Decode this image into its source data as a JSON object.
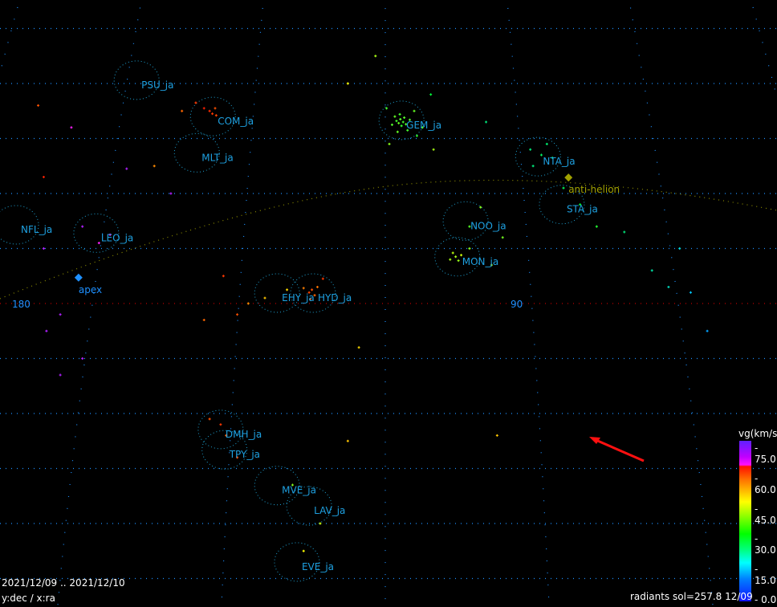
{
  "chart_data": {
    "type": "scatter",
    "xlabel": "x:ra",
    "ylabel": "y:dec",
    "axis_label_text": "y:dec / x:ra",
    "x_tick_labels": [
      "180",
      "90"
    ],
    "grid": true,
    "date_range": "2021/12/09 .. 2021/12/10",
    "status": "radiants sol=257.8 12/09",
    "colorbar": {
      "title": "vg(km/s)",
      "ticks": [
        "75.0",
        "60.0",
        "45.0",
        "30.0",
        "15.0",
        "0.0"
      ],
      "range": [
        0,
        75
      ]
    },
    "markers": [
      {
        "name": "apex",
        "ra": 168.7,
        "dec": 4.7,
        "color": "#1e90ff"
      },
      {
        "name": "anti-helion",
        "ra": 80.1,
        "dec": 22.9,
        "color": "#a0a000"
      }
    ],
    "showers": [
      {
        "name": "PSU_ja",
        "ra": 158.2,
        "dec": 40.6
      },
      {
        "name": "COM_ja",
        "ra": 144.4,
        "dec": 34.0
      },
      {
        "name": "MLT_ja",
        "ra": 147.3,
        "dec": 27.4
      },
      {
        "name": "GEM_ja",
        "ra": 110.3,
        "dec": 33.3
      },
      {
        "name": "NTA_ja",
        "ra": 85.6,
        "dec": 26.7
      },
      {
        "name": "STA_ja",
        "ra": 81.3,
        "dec": 18.0
      },
      {
        "name": "NOO_ja",
        "ra": 98.7,
        "dec": 15.0
      },
      {
        "name": "MON_ja",
        "ra": 100.2,
        "dec": 8.5
      },
      {
        "name": "NFL_ja",
        "ra": 180.0,
        "dec": 14.3
      },
      {
        "name": "LEO_ja",
        "ra": 165.5,
        "dec": 12.8
      },
      {
        "name": "EHY_ja",
        "ra": 132.8,
        "dec": 1.9
      },
      {
        "name": "HYD_ja",
        "ra": 126.3,
        "dec": 1.9
      },
      {
        "name": "DMH_ja",
        "ra": 143.0,
        "dec": -22.9
      },
      {
        "name": "TPY_ja",
        "ra": 142.3,
        "dec": -26.6
      },
      {
        "name": "MVE_ja",
        "ra": 132.8,
        "dec": -33.1
      },
      {
        "name": "LAV_ja",
        "ra": 127.0,
        "dec": -36.8
      },
      {
        "name": "EVE_ja",
        "ra": 129.2,
        "dec": -47.0
      }
    ],
    "points": [
      [
        110.5,
        33.5,
        35
      ],
      [
        110.0,
        33.0,
        34
      ],
      [
        110.8,
        32.8,
        36
      ],
      [
        109.8,
        33.8,
        35
      ],
      [
        111.2,
        33.2,
        34
      ],
      [
        110.3,
        32.3,
        33
      ],
      [
        109.5,
        32.6,
        35
      ],
      [
        111.5,
        34.0,
        36
      ],
      [
        110.6,
        34.4,
        34
      ],
      [
        108.8,
        33.4,
        35
      ],
      [
        112.0,
        32.5,
        35
      ],
      [
        109.2,
        31.5,
        34
      ],
      [
        111.0,
        31.2,
        36
      ],
      [
        107.5,
        30.5,
        33
      ],
      [
        113.0,
        35.5,
        34
      ],
      [
        108.0,
        35.0,
        36
      ],
      [
        106.5,
        32.0,
        35
      ],
      [
        104.5,
        28.0,
        40
      ],
      [
        112.5,
        29.0,
        38
      ],
      [
        144.5,
        34.5,
        62
      ],
      [
        145.0,
        35.0,
        63
      ],
      [
        143.8,
        34.2,
        61
      ],
      [
        146.0,
        35.5,
        64
      ],
      [
        144.0,
        35.5,
        60
      ],
      [
        147.5,
        36.5,
        62
      ],
      [
        150.0,
        35.0,
        58
      ],
      [
        126.5,
        2.5,
        60
      ],
      [
        126.0,
        1.5,
        58
      ],
      [
        127.0,
        2.0,
        61
      ],
      [
        125.5,
        3.0,
        57
      ],
      [
        126.8,
        0.8,
        59
      ],
      [
        128.0,
        2.8,
        56
      ],
      [
        124.5,
        4.5,
        62
      ],
      [
        100.5,
        8.5,
        40
      ],
      [
        101.0,
        9.2,
        41
      ],
      [
        100.0,
        7.8,
        39
      ],
      [
        99.5,
        8.8,
        42
      ],
      [
        101.5,
        8.0,
        40
      ],
      [
        98.0,
        10.0,
        38
      ],
      [
        87.0,
        28.0,
        25
      ],
      [
        85.0,
        27.0,
        27
      ],
      [
        83.0,
        26.5,
        28
      ],
      [
        84.0,
        29.0,
        26
      ],
      [
        86.5,
        25.0,
        25
      ],
      [
        81.0,
        21.0,
        28
      ],
      [
        78.0,
        18.0,
        30
      ],
      [
        75.0,
        14.0,
        32
      ],
      [
        98.0,
        14.0,
        35
      ],
      [
        96.0,
        17.5,
        38
      ],
      [
        92.0,
        12.0,
        37
      ],
      [
        94.0,
        7.0,
        40
      ],
      [
        168.0,
        14.0,
        70
      ],
      [
        165.0,
        11.0,
        68
      ],
      [
        163.0,
        12.5,
        69
      ],
      [
        175.0,
        10.0,
        71
      ],
      [
        172.0,
        -2.0,
        72
      ],
      [
        174.5,
        -5.0,
        70
      ],
      [
        168.0,
        -10.0,
        71
      ],
      [
        172.0,
        -13.0,
        70
      ],
      [
        175.0,
        23.0,
        64
      ],
      [
        170.0,
        32.0,
        65
      ],
      [
        176.0,
        36.0,
        60
      ],
      [
        160.0,
        24.5,
        70
      ],
      [
        155.0,
        25.0,
        55
      ],
      [
        152.0,
        20.0,
        72
      ],
      [
        135.0,
        1.0,
        50
      ],
      [
        138.0,
        0.0,
        55
      ],
      [
        131.0,
        2.5,
        48
      ],
      [
        140.0,
        -2.0,
        60
      ],
      [
        142.5,
        5.0,
        62
      ],
      [
        146.0,
        -3.0,
        58
      ],
      [
        143.0,
        -22.0,
        62
      ],
      [
        142.0,
        -24.0,
        58
      ],
      [
        145.0,
        -21.0,
        60
      ],
      [
        140.0,
        -28.0,
        60
      ],
      [
        130.0,
        -33.0,
        38
      ],
      [
        125.0,
        -40.0,
        42
      ],
      [
        128.0,
        -45.0,
        45
      ],
      [
        120.0,
        -25.0,
        50
      ],
      [
        118.0,
        -8.0,
        48
      ],
      [
        70.0,
        13.0,
        25
      ],
      [
        65.0,
        6.0,
        22
      ],
      [
        62.0,
        3.0,
        20
      ],
      [
        60.0,
        10.0,
        18
      ],
      [
        58.0,
        2.0,
        15
      ],
      [
        55.0,
        -5.0,
        12
      ],
      [
        93.0,
        -24.0,
        50
      ],
      [
        115.0,
        45.0,
        40
      ],
      [
        120.0,
        40.0,
        45
      ],
      [
        105.0,
        38.0,
        30
      ],
      [
        95.0,
        33.0,
        25
      ]
    ]
  }
}
